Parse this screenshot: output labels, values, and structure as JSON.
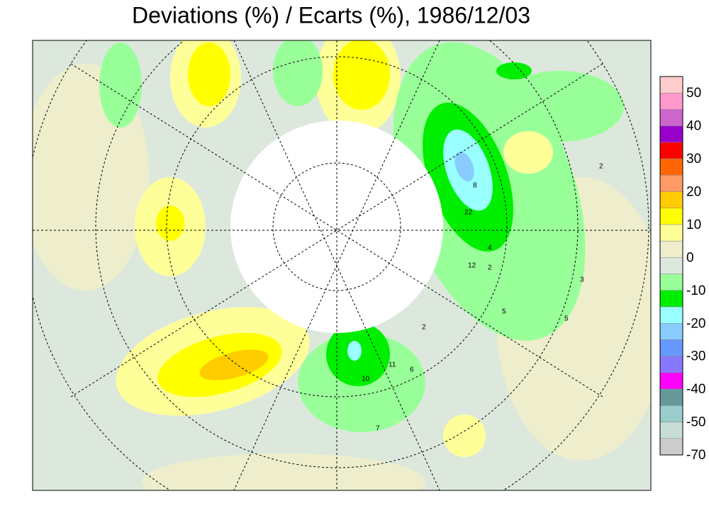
{
  "title": "Deviations (%) / Ecarts (%), 1986/12/03",
  "colorbar": {
    "colors": [
      "#ffcccc",
      "#ff99cc",
      "#cc66cc",
      "#9900cc",
      "#ff0000",
      "#ff6600",
      "#ff9966",
      "#ffcc00",
      "#ffff00",
      "#ffff99",
      "#eeeecc",
      "#dde8dd",
      "#99ff99",
      "#00ee00",
      "#99ffff",
      "#88ccff",
      "#6699ff",
      "#8877ff",
      "#ff00ff",
      "#669999",
      "#99cccc",
      "#c8ddd8",
      "#cccccc"
    ],
    "ticks": [
      50,
      40,
      30,
      20,
      10,
      0,
      -10,
      -20,
      -30,
      -40,
      -50,
      -70
    ]
  },
  "map": {
    "station_labels": [
      "22",
      "12",
      "4",
      "2",
      "8",
      "5",
      "3",
      "2",
      "10",
      "11",
      "7",
      "6",
      "2",
      "5"
    ]
  }
}
